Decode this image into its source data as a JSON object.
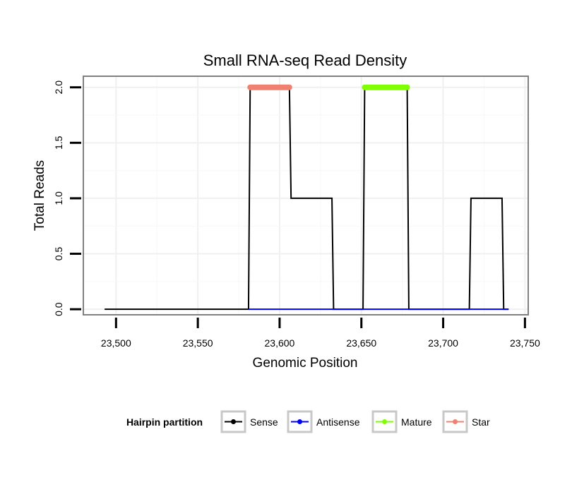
{
  "chart_data": {
    "type": "line",
    "title": "Small RNA-seq Read Density",
    "xlabel": "Genomic Position",
    "ylabel": "Total Reads",
    "xlim": [
      23480,
      23752
    ],
    "ylim": [
      -0.05,
      2.1
    ],
    "x_ticks": [
      23500,
      23550,
      23600,
      23650,
      23700,
      23750
    ],
    "x_tick_labels": [
      "23,500",
      "23,550",
      "23,600",
      "23,650",
      "23,700",
      "23,750"
    ],
    "y_ticks": [
      0,
      0.5,
      1,
      1.5,
      2
    ],
    "y_tick_labels": [
      "0.0",
      "0.5",
      "1.0",
      "1.5",
      "2.0"
    ],
    "grid": true,
    "legend": {
      "title": "Hairpin partition",
      "position": "bottom",
      "entries": [
        {
          "name": "Sense",
          "color": "#000000"
        },
        {
          "name": "Antisense",
          "color": "#0000ff"
        },
        {
          "name": "Mature",
          "color": "#7fff00"
        },
        {
          "name": "Star",
          "color": "#f08070"
        }
      ]
    },
    "series": [
      {
        "name": "Sense",
        "color": "#000000",
        "x": [
          23493,
          23581,
          23582,
          23606,
          23607,
          23632,
          23633,
          23651,
          23652,
          23678,
          23679,
          23716,
          23717,
          23736,
          23737,
          23740
        ],
        "y": [
          0,
          0,
          2,
          2,
          1,
          1,
          0,
          0,
          2,
          2,
          0,
          0,
          1,
          1,
          0,
          0
        ]
      },
      {
        "name": "Antisense",
        "color": "#0000ff",
        "x": [
          23581,
          23740
        ],
        "y": [
          0,
          0
        ]
      },
      {
        "name": "Mature",
        "color": "#7fff00",
        "x": [
          23652,
          23678
        ],
        "y": [
          2,
          2
        ]
      },
      {
        "name": "Star",
        "color": "#f08070",
        "x": [
          23582,
          23606
        ],
        "y": [
          2,
          2
        ]
      }
    ]
  }
}
